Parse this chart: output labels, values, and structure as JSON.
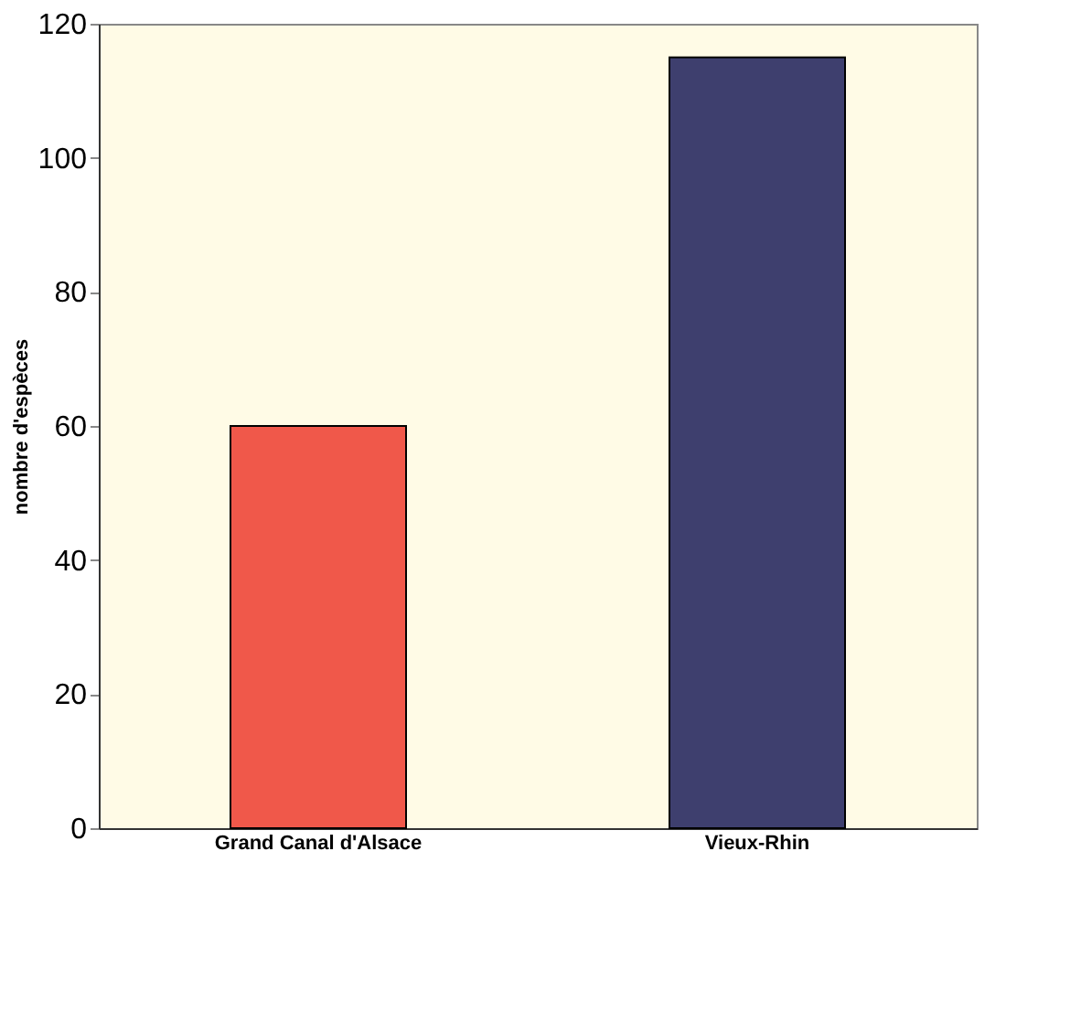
{
  "chart_data": {
    "type": "bar",
    "categories": [
      "Grand Canal d'Alsace",
      "Vieux-Rhin"
    ],
    "values": [
      60,
      115
    ],
    "colors": [
      "#f0584a",
      "#3e3f6e"
    ],
    "ylabel": "nombre d'espèces",
    "ylim": [
      0,
      120
    ],
    "yticks": [
      0,
      20,
      40,
      60,
      80,
      100,
      120
    ],
    "grid": false
  }
}
